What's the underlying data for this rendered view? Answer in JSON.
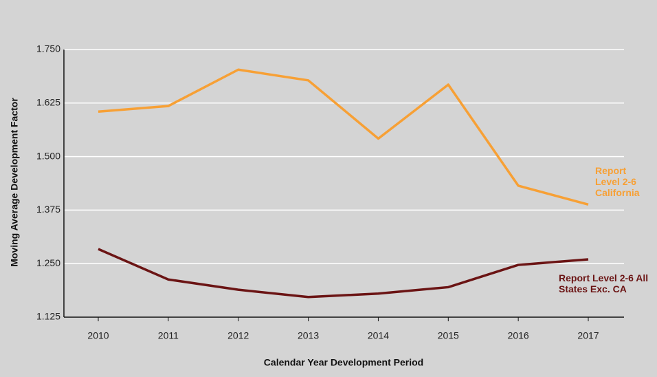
{
  "chart_data": {
    "type": "line",
    "x_label": "Calendar Year Development Period",
    "y_label": "Moving Average Development Factor",
    "categories": [
      "2010",
      "2011",
      "2012",
      "2013",
      "2014",
      "2015",
      "2016",
      "2017"
    ],
    "series": [
      {
        "name": "Report Level 2-6 California",
        "color": "#f7a035",
        "values": [
          1.605,
          1.618,
          1.703,
          1.678,
          1.542,
          1.668,
          1.432,
          1.388
        ]
      },
      {
        "name": "Report Level 2-6 All States Exc. CA",
        "color": "#6b1414",
        "values": [
          1.284,
          1.213,
          1.189,
          1.172,
          1.18,
          1.195,
          1.247,
          1.26
        ]
      }
    ],
    "ylim": [
      1.125,
      1.75
    ],
    "yticks": [
      1.125,
      {
        "value": 1.25,
        "label": "1.250"
      },
      1.375,
      {
        "value": 1.5,
        "label": "1.500"
      },
      1.625,
      {
        "value": 1.75,
        "label": "1.750"
      }
    ],
    "grid": true
  }
}
